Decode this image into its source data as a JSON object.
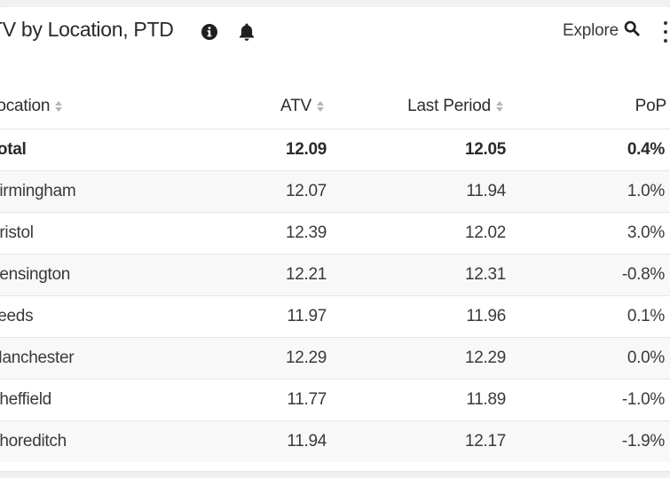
{
  "header": {
    "title": "TV by Location, PTD",
    "explore_label": "Explore"
  },
  "icons": {
    "info": "info-icon",
    "bell": "bell-icon",
    "search": "search-icon",
    "menu": "kebab-menu-icon"
  },
  "table": {
    "columns": {
      "location": "Location",
      "atv": "ATV",
      "last_period": "Last Period",
      "pop": "PoP"
    },
    "rows": [
      {
        "location": "Total",
        "atv": "12.09",
        "last_period": "12.05",
        "pop": "0.4%"
      },
      {
        "location": "Birmingham",
        "atv": "12.07",
        "last_period": "11.94",
        "pop": "1.0%"
      },
      {
        "location": "Bristol",
        "atv": "12.39",
        "last_period": "12.02",
        "pop": "3.0%"
      },
      {
        "location": "Kensington",
        "atv": "12.21",
        "last_period": "12.31",
        "pop": "-0.8%"
      },
      {
        "location": "Leeds",
        "atv": "11.97",
        "last_period": "11.96",
        "pop": "0.1%"
      },
      {
        "location": "Manchester",
        "atv": "12.29",
        "last_period": "12.29",
        "pop": "0.0%"
      },
      {
        "location": "Sheffield",
        "atv": "11.77",
        "last_period": "11.89",
        "pop": "-1.0%"
      },
      {
        "location": "Shoreditch",
        "atv": "11.94",
        "last_period": "12.17",
        "pop": "-1.9%"
      }
    ]
  },
  "colors": {
    "background": "#f1f1f3",
    "card": "#ffffff",
    "text": "#2c2c2c",
    "muted_sort": "#b5b5b5",
    "row_alt": "#f8f8f8"
  }
}
